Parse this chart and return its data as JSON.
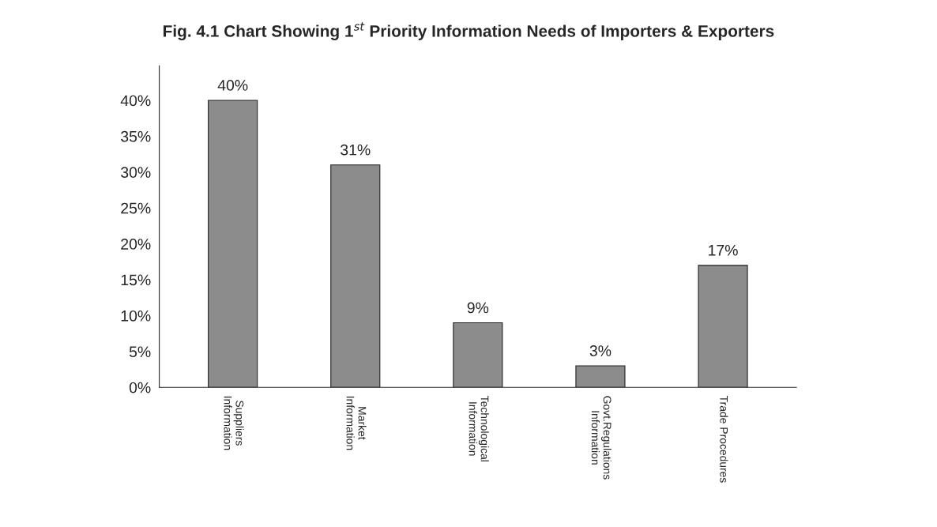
{
  "chart_data": {
    "type": "bar",
    "title": "Fig. 4.1 Chart Showing 1$^{st}$ Priority Information Needs of Importers & Exporters",
    "categories": [
      "Suppliers\nInformation",
      "Market\nInformation",
      "Technological\nInformation",
      "Govt.Regulations\nInformation",
      "Trade Procedures"
    ],
    "values": [
      40,
      31,
      9,
      3,
      17
    ],
    "value_labels": [
      "40%",
      "31%",
      "9%",
      "3%",
      "17%"
    ],
    "color": "#8c8c8c",
    "ylim": [
      0,
      40
    ],
    "yticks": [
      {
        "value": 0,
        "label": "0%"
      },
      {
        "value": 5,
        "label": "5%"
      },
      {
        "value": 10,
        "label": "10%"
      },
      {
        "value": 15,
        "label": "15%"
      },
      {
        "value": 20,
        "label": "20%"
      },
      {
        "value": 25,
        "label": "25%"
      },
      {
        "value": 30,
        "label": "30%"
      },
      {
        "value": 35,
        "label": "35%"
      },
      {
        "value": 40,
        "label": "40%"
      }
    ],
    "grid": false
  }
}
